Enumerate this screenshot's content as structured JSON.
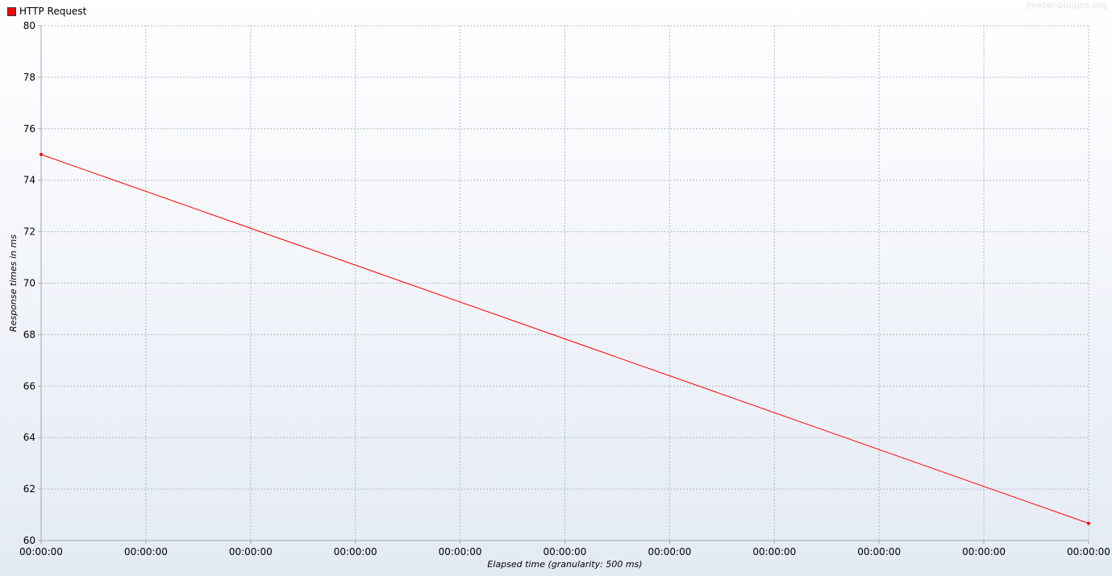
{
  "legend": {
    "label": "HTTP Request"
  },
  "watermark": "jmeter-plugins.org",
  "colors": {
    "series": "#ff0000",
    "grid": "#b0bcc4",
    "axis": "#a0a8b0"
  },
  "chart_data": {
    "type": "line",
    "xlabel": "Elapsed time (granularity: 500 ms)",
    "ylabel": "Response times in ms",
    "ylim": [
      60,
      80
    ],
    "y_ticks": [
      60,
      62,
      64,
      66,
      68,
      70,
      72,
      74,
      76,
      78,
      80
    ],
    "x_tick_labels": [
      "00:00:00",
      "00:00:00",
      "00:00:00",
      "00:00:00",
      "00:00:00",
      "00:00:00",
      "00:00:00",
      "00:00:00",
      "00:00:00",
      "00:00:00",
      "00:00:00"
    ],
    "grid": true,
    "legend_position": "top-left",
    "series": [
      {
        "name": "HTTP Request",
        "x_fraction": [
          0,
          1
        ],
        "values": [
          75,
          60.67
        ]
      }
    ]
  }
}
